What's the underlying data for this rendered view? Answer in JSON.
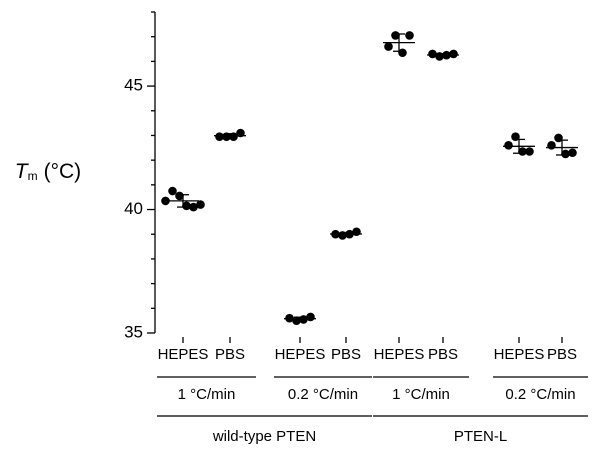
{
  "chart_data": {
    "type": "dot",
    "ylabel": {
      "symbol": "T",
      "subscript": "m",
      "unit": "(°C)"
    },
    "ylim": [
      35,
      48
    ],
    "yticks": [
      35,
      40,
      45
    ],
    "minor_yticks": [
      36,
      37,
      38,
      39,
      41,
      42,
      43,
      44,
      46,
      47,
      48
    ],
    "color": "#000000",
    "categories": [
      "HEPES",
      "PBS",
      "HEPES",
      "PBS",
      "HEPES",
      "PBS",
      "HEPES",
      "PBS"
    ],
    "rates": [
      "1 °C/min",
      "0.2 °C/min",
      "1 °C/min",
      "0.2 °C/min"
    ],
    "proteins": [
      "wild-type PTEN",
      "PTEN-L"
    ],
    "groups": [
      {
        "points": [
          40.35,
          40.75,
          40.55,
          40.15,
          40.1,
          40.2
        ],
        "mean": 40.35,
        "sd": 0.25
      },
      {
        "points": [
          42.95,
          42.95,
          42.95,
          43.1
        ],
        "mean": 42.99,
        "sd": 0.08
      },
      {
        "points": [
          35.6,
          35.5,
          35.55,
          35.65
        ],
        "mean": 35.58,
        "sd": 0.06
      },
      {
        "points": [
          39.0,
          38.95,
          39.0,
          39.1
        ],
        "mean": 39.01,
        "sd": 0.06
      },
      {
        "points": [
          46.6,
          47.05,
          46.35,
          47.05
        ],
        "mean": 46.76,
        "sd": 0.35
      },
      {
        "points": [
          46.3,
          46.2,
          46.25,
          46.3
        ],
        "mean": 46.26,
        "sd": 0.05
      },
      {
        "points": [
          42.6,
          42.95,
          42.35,
          42.35
        ],
        "mean": 42.56,
        "sd": 0.28
      },
      {
        "points": [
          42.6,
          42.9,
          42.25,
          42.3
        ],
        "mean": 42.51,
        "sd": 0.3
      }
    ]
  }
}
